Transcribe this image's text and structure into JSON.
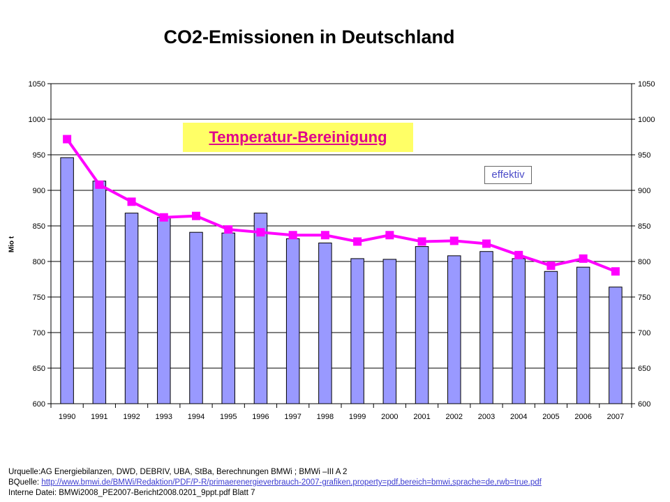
{
  "chart_data": {
    "type": "bar",
    "title": "CO2-Emissionen in Deutschland",
    "ylabel": "Mio t",
    "categories": [
      "1990",
      "1991",
      "1992",
      "1993",
      "1994",
      "1995",
      "1996",
      "1997",
      "1998",
      "1999",
      "2000",
      "2001",
      "2002",
      "2003",
      "2004",
      "2005",
      "2006",
      "2007"
    ],
    "ylim": [
      600,
      1050
    ],
    "yticks": [
      600,
      650,
      700,
      750,
      800,
      850,
      900,
      950,
      1000,
      1050
    ],
    "grid": true,
    "series": [
      {
        "type": "bar",
        "color": "#9999ff",
        "values": [
          946,
          913,
          868,
          862,
          841,
          840,
          868,
          832,
          826,
          804,
          803,
          821,
          808,
          814,
          804,
          786,
          792,
          764
        ]
      },
      {
        "type": "line",
        "color": "#ff00ff",
        "values": [
          972,
          908,
          884,
          862,
          864,
          845,
          841,
          837,
          837,
          828,
          837,
          828,
          829,
          825,
          809,
          794,
          804,
          786
        ]
      }
    ]
  },
  "annotations": {
    "temperatur": "Temperatur-Bereinigung",
    "effektiv": "effektiv"
  },
  "footer": {
    "line1": "Urquelle:AG Energiebilanzen, DWD, DEBRIV, UBA, StBa, Berechnungen BMWi ;      BMWi –III  A 2",
    "line2_prefix": "BQuelle: ",
    "line2_link": "http://www.bmwi.de/BMWi/Redaktion/PDF/P-R/primaerenergieverbrauch-2007-grafiken,property=pdf,bereich=bmwi,sprache=de,rwb=true.pdf",
    "line3": "Interne  Datei: BMWi2008_PE2007-Bericht2008.0201_9ppt.pdf     Blatt 7"
  }
}
